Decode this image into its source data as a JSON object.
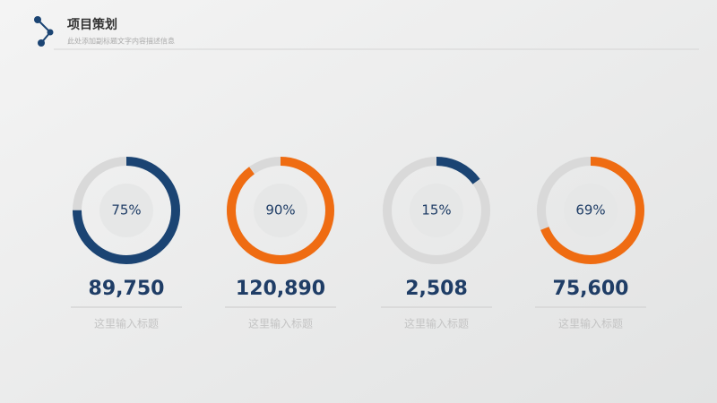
{
  "header": {
    "title": "项目策划",
    "subtitle": "此处添加副标题文字内容描述信息"
  },
  "chart_data": [
    {
      "type": "donut",
      "values": [
        75
      ],
      "value_labels": [
        "75%"
      ],
      "color": "#1b4473",
      "headline": "89,750",
      "caption": "这里输入标题"
    },
    {
      "type": "donut",
      "values": [
        90
      ],
      "value_labels": [
        "90%"
      ],
      "color": "#ef6c12",
      "headline": "120,890",
      "caption": "这里输入标题"
    },
    {
      "type": "donut",
      "values": [
        15
      ],
      "value_labels": [
        "15%"
      ],
      "color": "#1b4473",
      "headline": "2,508",
      "caption": "这里输入标题"
    },
    {
      "type": "donut",
      "values": [
        69
      ],
      "value_labels": [
        "69%"
      ],
      "color": "#ef6c12",
      "headline": "75,600",
      "caption": "这里输入标题"
    }
  ]
}
